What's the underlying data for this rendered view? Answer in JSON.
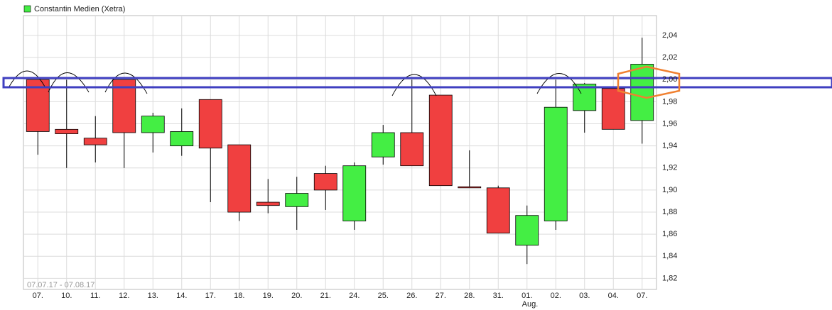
{
  "chart_data": {
    "type": "candlestick",
    "legend": "Constantin Medien (Xetra)",
    "date_range": "07.07.17 - 07.08.17",
    "month_label": "Aug.",
    "categories": [
      "07.",
      "10.",
      "11.",
      "12.",
      "13.",
      "14.",
      "17.",
      "18.",
      "19.",
      "20.",
      "21.",
      "24.",
      "25.",
      "26.",
      "27.",
      "28.",
      "31.",
      "01.",
      "02.",
      "03.",
      "04.",
      "07."
    ],
    "open": [
      2.0,
      1.955,
      1.947,
      2.0,
      1.952,
      1.94,
      1.982,
      1.941,
      1.889,
      1.885,
      1.915,
      1.872,
      1.93,
      1.952,
      1.986,
      1.903,
      1.902,
      1.85,
      1.872,
      1.972,
      1.992,
      1.963
    ],
    "high": [
      2.0,
      2.0,
      1.967,
      2.0,
      1.97,
      1.974,
      1.982,
      1.941,
      1.91,
      1.912,
      1.922,
      1.925,
      1.959,
      2.0,
      1.986,
      1.936,
      1.904,
      1.886,
      2.0,
      1.997,
      1.992,
      2.038
    ],
    "low": [
      1.932,
      1.92,
      1.925,
      1.92,
      1.934,
      1.931,
      1.889,
      1.872,
      1.879,
      1.864,
      1.882,
      1.864,
      1.923,
      1.922,
      1.904,
      1.902,
      1.861,
      1.833,
      1.864,
      1.952,
      1.955,
      1.942
    ],
    "close": [
      1.953,
      1.951,
      1.941,
      1.952,
      1.967,
      1.953,
      1.938,
      1.88,
      1.886,
      1.897,
      1.9,
      1.922,
      1.952,
      1.922,
      1.904,
      1.902,
      1.861,
      1.877,
      1.975,
      1.996,
      1.955,
      2.014
    ],
    "up_color": "#44ee44",
    "down_color": "#f04040",
    "ylim": [
      1.81,
      2.058
    ],
    "yticks": [
      {
        "value": 1.82,
        "label": "1,82"
      },
      {
        "value": 1.84,
        "label": "1,84"
      },
      {
        "value": 1.86,
        "label": "1,86"
      },
      {
        "value": 1.88,
        "label": "1,88"
      },
      {
        "value": 1.9,
        "label": "1,90"
      },
      {
        "value": 1.92,
        "label": "1,92"
      },
      {
        "value": 1.94,
        "label": "1,94"
      },
      {
        "value": 1.96,
        "label": "1,96"
      },
      {
        "value": 1.98,
        "label": "1,98"
      },
      {
        "value": 2.0,
        "label": "2,00"
      },
      {
        "value": 2.02,
        "label": "2,02"
      },
      {
        "value": 2.04,
        "label": "2,04"
      }
    ],
    "grid": true
  }
}
